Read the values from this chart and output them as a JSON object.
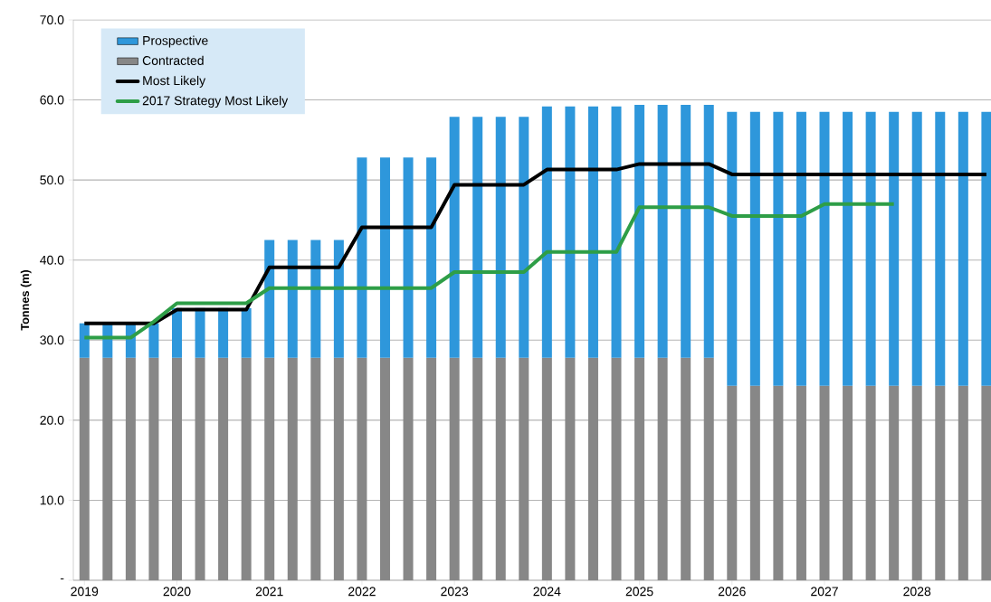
{
  "chart_data": {
    "type": "bar",
    "stacked": true,
    "ylabel": "Tonnes (m)",
    "x": [
      2019,
      2019.25,
      2019.5,
      2019.75,
      2020,
      2020.25,
      2020.5,
      2020.75,
      2021,
      2021.25,
      2021.5,
      2021.75,
      2022,
      2022.25,
      2022.5,
      2022.75,
      2023,
      2023.25,
      2023.5,
      2023.75,
      2024,
      2024.25,
      2024.5,
      2024.75,
      2025,
      2025.25,
      2025.5,
      2025.75,
      2026,
      2026.25,
      2026.5,
      2026.75,
      2027,
      2027.25,
      2027.5,
      2027.75,
      2028,
      2028.25,
      2028.5,
      2028.75
    ],
    "series": [
      {
        "name": "Contracted",
        "color": "#878787",
        "values": [
          27.8,
          27.8,
          27.8,
          27.8,
          27.8,
          27.8,
          27.8,
          27.8,
          27.8,
          27.8,
          27.8,
          27.8,
          27.8,
          27.8,
          27.8,
          27.8,
          27.8,
          27.8,
          27.8,
          27.8,
          27.8,
          27.8,
          27.8,
          27.8,
          27.8,
          27.8,
          27.8,
          27.8,
          24.3,
          24.3,
          24.3,
          24.3,
          24.3,
          24.3,
          24.3,
          24.3,
          24.3,
          24.3,
          24.3,
          24.3
        ]
      },
      {
        "name": "Prospective",
        "color": "#2e97db",
        "values": [
          4.3,
          4.3,
          4.3,
          4.3,
          6.2,
          6.2,
          6.2,
          6.2,
          14.7,
          14.7,
          14.7,
          14.7,
          25.0,
          25.0,
          25.0,
          25.0,
          30.1,
          30.1,
          30.1,
          30.1,
          31.4,
          31.4,
          31.4,
          31.4,
          31.6,
          31.6,
          31.6,
          31.6,
          34.2,
          34.2,
          34.2,
          34.2,
          34.2,
          34.2,
          34.2,
          34.2,
          34.2,
          34.2,
          34.2,
          34.2
        ]
      },
      {
        "name": "Most Likely",
        "type": "line",
        "color": "#000000",
        "values": [
          32.1,
          32.1,
          32.1,
          32.1,
          33.8,
          33.8,
          33.8,
          33.8,
          39.1,
          39.1,
          39.1,
          39.1,
          44.1,
          44.1,
          44.1,
          44.1,
          49.4,
          49.4,
          49.4,
          49.4,
          51.3,
          51.3,
          51.3,
          51.3,
          52.0,
          52.0,
          52.0,
          52.0,
          50.7,
          50.7,
          50.7,
          50.7,
          50.7,
          50.7,
          50.7,
          50.7,
          50.7,
          50.7,
          50.7,
          50.7
        ]
      },
      {
        "name": "2017 Strategy Most Likely",
        "type": "line",
        "color": "#2e9e47",
        "values": [
          30.3,
          30.3,
          30.3,
          32.3,
          34.6,
          34.6,
          34.6,
          34.6,
          36.5,
          36.5,
          36.5,
          36.5,
          36.5,
          36.5,
          36.5,
          36.5,
          38.5,
          38.5,
          38.5,
          38.5,
          41.0,
          41.0,
          41.0,
          41.0,
          46.6,
          46.6,
          46.6,
          46.6,
          45.5,
          45.5,
          45.5,
          45.5,
          47.0,
          47.0,
          47.0,
          47.0,
          null,
          null,
          null,
          null
        ]
      }
    ],
    "xlim": [
      2018.88,
      2028.8
    ],
    "xticks": [
      2019,
      2020,
      2021,
      2022,
      2023,
      2024,
      2025,
      2026,
      2027,
      2028
    ],
    "ylim": [
      0,
      70
    ],
    "yticks": [
      {
        "value": 0,
        "label": "-"
      },
      {
        "value": 10,
        "label": "10.0"
      },
      {
        "value": 20,
        "label": "20.0"
      },
      {
        "value": 30,
        "label": "30.0"
      },
      {
        "value": 40,
        "label": "40.0"
      },
      {
        "value": 50,
        "label": "50.0"
      },
      {
        "value": 60,
        "label": "60.0"
      },
      {
        "value": 70,
        "label": "70.0"
      }
    ],
    "grid": "y",
    "legend": "top left"
  }
}
